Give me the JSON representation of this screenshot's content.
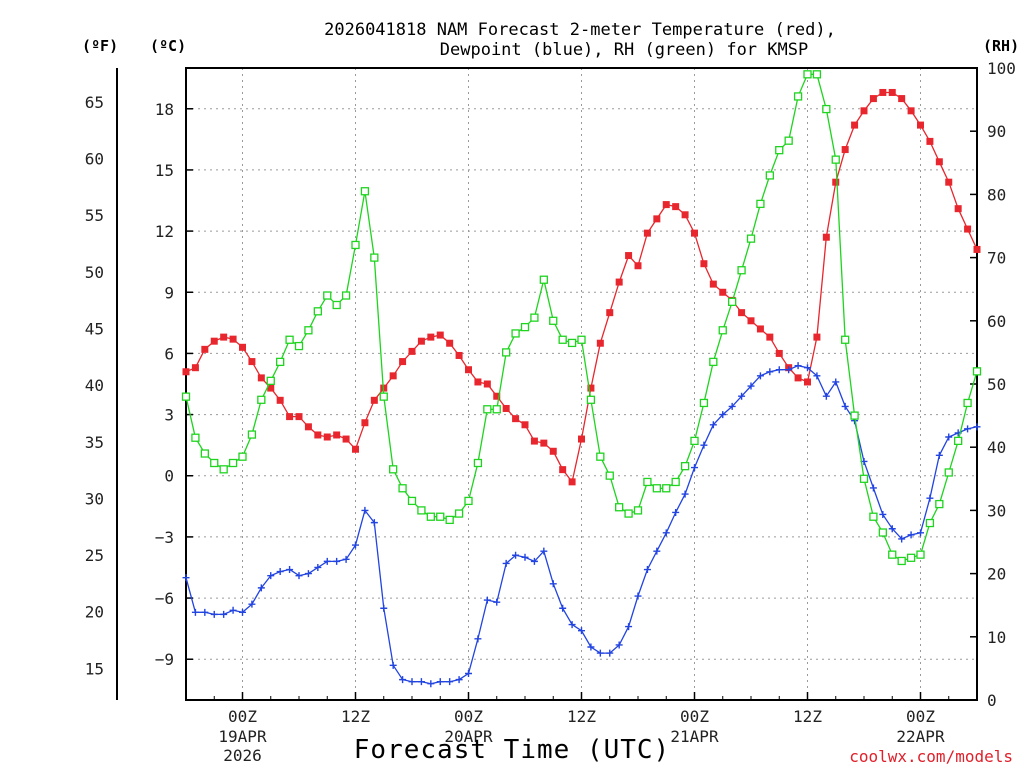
{
  "chart_data": {
    "type": "line",
    "title": "2026041818 NAM Forecast 2-meter Temperature (red), Dewpoint (blue), RH (green) for KMSP",
    "title_lines": [
      "2026041818 NAM Forecast 2-meter Temperature (red),",
      "Dewpoint (blue), RH (green) for KMSP"
    ],
    "xlabel": "Forecast Time (UTC)",
    "credit": "coolwx.com/models",
    "units": {
      "fahrenheit": "(ºF)",
      "celsius": "(ºC)",
      "rh": "(RH)"
    },
    "x_hours_range": [
      18,
      102
    ],
    "y_celsius_range": [
      -11,
      20
    ],
    "y_rh_range": [
      0,
      100
    ],
    "y_fahrenheit_range": [
      12.2,
      68
    ],
    "x_ticks": [
      {
        "hour": 24,
        "label": "00Z",
        "date": "19APR",
        "year": "2026"
      },
      {
        "hour": 36,
        "label": "12Z",
        "date": "",
        "year": ""
      },
      {
        "hour": 48,
        "label": "00Z",
        "date": "20APR",
        "year": ""
      },
      {
        "hour": 60,
        "label": "12Z",
        "date": "",
        "year": ""
      },
      {
        "hour": 72,
        "label": "00Z",
        "date": "21APR",
        "year": ""
      },
      {
        "hour": 84,
        "label": "12Z",
        "date": "",
        "year": ""
      },
      {
        "hour": 96,
        "label": "00Z",
        "date": "22APR",
        "year": ""
      }
    ],
    "celsius_ticks": [
      "18",
      "15",
      "12",
      "9",
      "6",
      "3",
      "0",
      "−3",
      "−6",
      "−9"
    ],
    "fahrenheit_ticks": [
      "65",
      "60",
      "55",
      "50",
      "45",
      "40",
      "35",
      "30",
      "25",
      "20",
      "15"
    ],
    "rh_ticks": [
      "100",
      "90",
      "80",
      "70",
      "60",
      "50",
      "40",
      "30",
      "20",
      "10",
      "0"
    ],
    "hours": [
      18,
      19,
      20,
      21,
      22,
      23,
      24,
      25,
      26,
      27,
      28,
      29,
      30,
      31,
      32,
      33,
      34,
      35,
      36,
      37,
      38,
      39,
      40,
      41,
      42,
      43,
      44,
      45,
      46,
      47,
      48,
      49,
      50,
      51,
      52,
      53,
      54,
      55,
      56,
      57,
      58,
      59,
      60,
      61,
      62,
      63,
      64,
      65,
      66,
      67,
      68,
      69,
      70,
      71,
      72,
      73,
      74,
      75,
      76,
      77,
      78,
      79,
      80,
      81,
      82,
      83,
      84,
      85,
      86,
      87,
      88,
      89,
      90,
      91,
      92,
      93,
      94,
      95,
      96,
      97,
      98,
      99,
      100,
      101,
      102
    ],
    "series": [
      {
        "name": "Temperature",
        "unit": "C",
        "color": "#e8262d",
        "marker": "filled-square",
        "values": [
          5.1,
          5.3,
          6.2,
          6.6,
          6.8,
          6.7,
          6.3,
          5.6,
          4.8,
          4.3,
          3.7,
          2.9,
          2.9,
          2.4,
          2.0,
          1.9,
          2.0,
          1.8,
          1.3,
          2.6,
          3.7,
          4.3,
          4.9,
          5.6,
          6.1,
          6.6,
          6.8,
          6.9,
          6.5,
          5.9,
          5.2,
          4.6,
          4.5,
          3.9,
          3.3,
          2.8,
          2.5,
          1.7,
          1.6,
          1.2,
          0.3,
          -0.3,
          1.8,
          4.3,
          6.5,
          8.0,
          9.5,
          10.8,
          10.3,
          11.9,
          12.6,
          13.3,
          13.2,
          12.8,
          11.9,
          10.4,
          9.4,
          9.0,
          8.6,
          8.0,
          7.6,
          7.2,
          6.8,
          6.0,
          5.3,
          4.8,
          4.6,
          6.8,
          11.7,
          14.4,
          16.0,
          17.2,
          17.9,
          18.5,
          18.8,
          18.8,
          18.5,
          17.9,
          17.2,
          16.4,
          15.4,
          14.4,
          13.1,
          12.1,
          11.1
        ]
      },
      {
        "name": "Dewpoint",
        "unit": "C",
        "color": "#2244e0",
        "marker": "plus",
        "values": [
          -5.0,
          -6.7,
          -6.7,
          -6.8,
          -6.8,
          -6.6,
          -6.7,
          -6.3,
          -5.5,
          -4.9,
          -4.7,
          -4.6,
          -4.9,
          -4.8,
          -4.5,
          -4.2,
          -4.2,
          -4.1,
          -3.4,
          -1.7,
          -2.3,
          -6.5,
          -9.3,
          -10.0,
          -10.1,
          -10.1,
          -10.2,
          -10.1,
          -10.1,
          -10.0,
          -9.7,
          -8.0,
          -6.1,
          -6.2,
          -4.3,
          -3.9,
          -4.0,
          -4.2,
          -3.7,
          -5.3,
          -6.5,
          -7.3,
          -7.6,
          -8.4,
          -8.7,
          -8.7,
          -8.3,
          -7.4,
          -5.9,
          -4.6,
          -3.7,
          -2.8,
          -1.8,
          -0.9,
          0.4,
          1.5,
          2.5,
          3.0,
          3.4,
          3.9,
          4.4,
          4.9,
          5.1,
          5.2,
          5.2,
          5.4,
          5.3,
          4.9,
          3.9,
          4.6,
          3.4,
          2.7,
          0.7,
          -0.6,
          -1.9,
          -2.6,
          -3.1,
          -2.9,
          -2.8,
          -1.1,
          1.0,
          1.9,
          2.1,
          2.3,
          2.4
        ]
      },
      {
        "name": "RH",
        "unit": "%",
        "color": "#1ed41e",
        "marker": "open-square",
        "values": [
          48,
          41.5,
          39,
          37.5,
          36.5,
          37.5,
          38.5,
          42,
          47.5,
          50.5,
          53.5,
          57,
          56,
          58.5,
          61.5,
          64,
          62.5,
          64,
          72,
          80.5,
          70,
          48,
          36.5,
          33.5,
          31.5,
          30,
          29,
          29,
          28.5,
          29.5,
          31.5,
          37.5,
          46,
          46,
          55,
          58,
          59,
          60.5,
          66.5,
          60,
          57,
          56.5,
          57,
          47.5,
          38.5,
          35.5,
          30.5,
          29.5,
          30,
          34.5,
          33.5,
          33.5,
          34.5,
          37,
          41,
          47,
          53.5,
          58.5,
          63,
          68,
          73,
          78.5,
          83,
          87,
          88.5,
          95.5,
          99,
          99,
          93.5,
          85.5,
          57,
          45,
          35,
          29,
          26.5,
          23,
          22,
          22.5,
          23,
          28,
          31,
          36,
          41,
          47,
          52
        ]
      }
    ]
  }
}
